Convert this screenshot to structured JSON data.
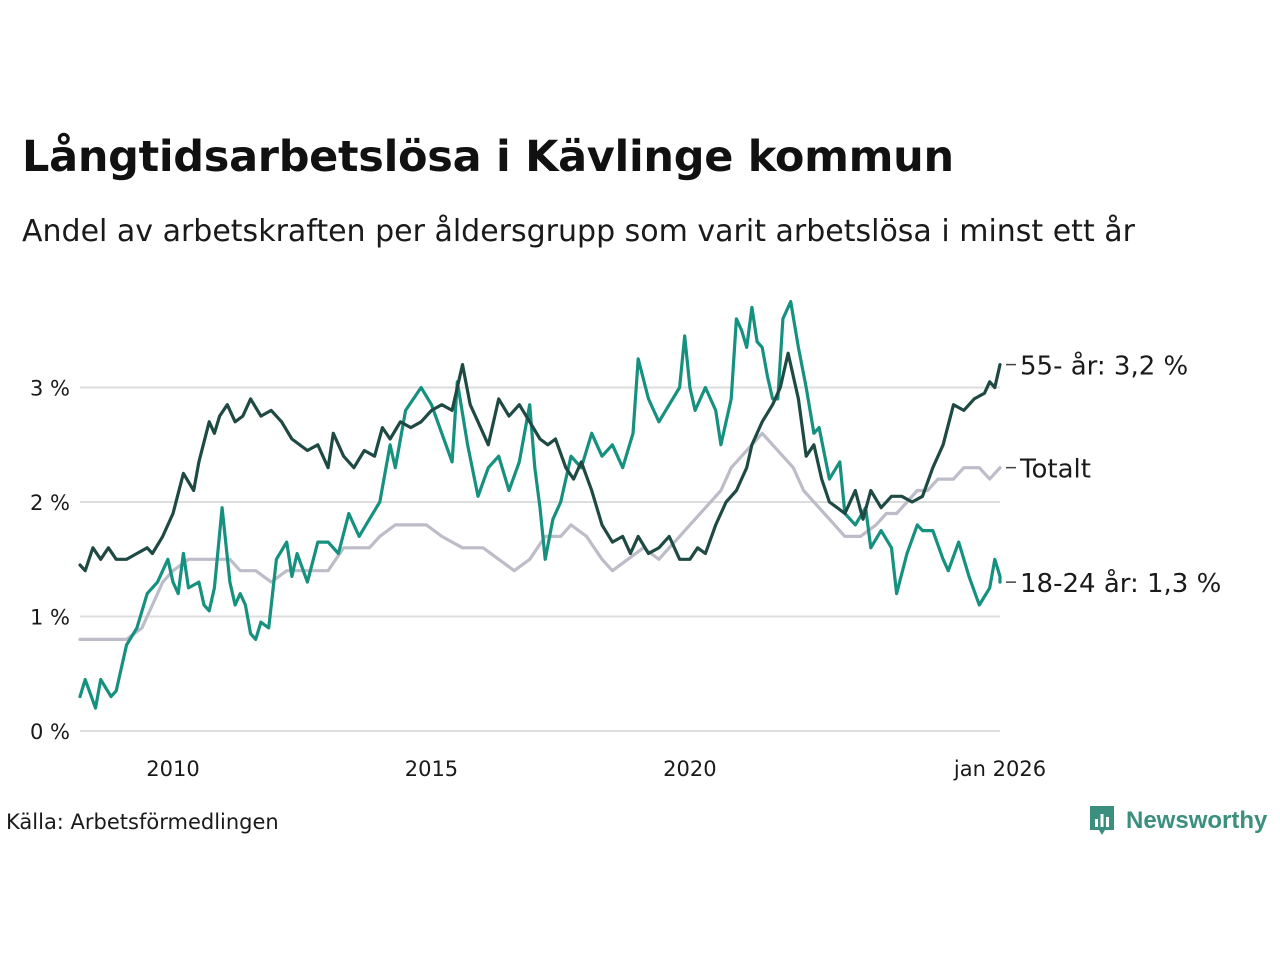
{
  "title": "Långtidsarbetslösa i Kävlinge kommun",
  "subtitle": "Andel av arbetskraften per åldersgrupp som varit arbetslösa i minst ett år",
  "source": "Källa: Arbetsförmedlingen",
  "brand": "Newsworthy",
  "colors": {
    "older": "#1f4a44",
    "young": "#16917f",
    "total": "#bdbcc9",
    "grid": "#dddddd",
    "brand": "#3b8f7e"
  },
  "chart_data": {
    "type": "line",
    "title": "Långtidsarbetslösa i Kävlinge kommun",
    "xlabel": "",
    "ylabel": "",
    "xlim": [
      2008.2,
      2026.0
    ],
    "ylim": [
      0,
      3.8
    ],
    "grid": true,
    "y_ticks": [
      {
        "value": 0,
        "label": "0 %"
      },
      {
        "value": 1,
        "label": "1 %"
      },
      {
        "value": 2,
        "label": "2 %"
      },
      {
        "value": 3,
        "label": "3 %"
      }
    ],
    "x_ticks": [
      {
        "value": 2010,
        "label": "2010"
      },
      {
        "value": 2015,
        "label": "2015"
      },
      {
        "value": 2020,
        "label": "2020"
      },
      {
        "value": 2026,
        "label": "jan 2026"
      }
    ],
    "series": [
      {
        "name": "Totalt",
        "color": "#bdbcc9",
        "end_label": "Totalt",
        "points": [
          [
            2008.2,
            0.8
          ],
          [
            2009.1,
            0.8
          ],
          [
            2009.4,
            0.9
          ],
          [
            2009.6,
            1.1
          ],
          [
            2009.8,
            1.3
          ],
          [
            2010.0,
            1.4
          ],
          [
            2010.3,
            1.5
          ],
          [
            2010.6,
            1.5
          ],
          [
            2011.1,
            1.5
          ],
          [
            2011.3,
            1.4
          ],
          [
            2011.6,
            1.4
          ],
          [
            2011.9,
            1.3
          ],
          [
            2012.2,
            1.4
          ],
          [
            2012.6,
            1.4
          ],
          [
            2013.0,
            1.4
          ],
          [
            2013.3,
            1.6
          ],
          [
            2013.8,
            1.6
          ],
          [
            2014.0,
            1.7
          ],
          [
            2014.3,
            1.8
          ],
          [
            2014.6,
            1.8
          ],
          [
            2014.9,
            1.8
          ],
          [
            2015.2,
            1.7
          ],
          [
            2015.6,
            1.6
          ],
          [
            2016.0,
            1.6
          ],
          [
            2016.3,
            1.5
          ],
          [
            2016.6,
            1.4
          ],
          [
            2016.9,
            1.5
          ],
          [
            2017.2,
            1.7
          ],
          [
            2017.5,
            1.7
          ],
          [
            2017.7,
            1.8
          ],
          [
            2018.0,
            1.7
          ],
          [
            2018.3,
            1.5
          ],
          [
            2018.5,
            1.4
          ],
          [
            2018.8,
            1.5
          ],
          [
            2019.1,
            1.6
          ],
          [
            2019.4,
            1.5
          ],
          [
            2019.6,
            1.6
          ],
          [
            2019.8,
            1.7
          ],
          [
            2020.0,
            1.8
          ],
          [
            2020.2,
            1.9
          ],
          [
            2020.4,
            2.0
          ],
          [
            2020.6,
            2.1
          ],
          [
            2020.8,
            2.3
          ],
          [
            2021.0,
            2.4
          ],
          [
            2021.2,
            2.5
          ],
          [
            2021.4,
            2.6
          ],
          [
            2021.6,
            2.5
          ],
          [
            2021.8,
            2.4
          ],
          [
            2022.0,
            2.3
          ],
          [
            2022.2,
            2.1
          ],
          [
            2022.4,
            2.0
          ],
          [
            2022.6,
            1.9
          ],
          [
            2022.8,
            1.8
          ],
          [
            2023.0,
            1.7
          ],
          [
            2023.3,
            1.7
          ],
          [
            2023.6,
            1.8
          ],
          [
            2023.8,
            1.9
          ],
          [
            2024.0,
            1.9
          ],
          [
            2024.2,
            2.0
          ],
          [
            2024.4,
            2.1
          ],
          [
            2024.6,
            2.1
          ],
          [
            2024.8,
            2.2
          ],
          [
            2025.1,
            2.2
          ],
          [
            2025.3,
            2.3
          ],
          [
            2025.6,
            2.3
          ],
          [
            2025.8,
            2.2
          ],
          [
            2026.0,
            2.3
          ]
        ]
      },
      {
        "name": "18-24 år",
        "color": "#16917f",
        "end_label": "18-24 år: 1,3 %",
        "points": [
          [
            2008.2,
            0.3
          ],
          [
            2008.3,
            0.45
          ],
          [
            2008.5,
            0.2
          ],
          [
            2008.6,
            0.45
          ],
          [
            2008.8,
            0.3
          ],
          [
            2008.9,
            0.35
          ],
          [
            2009.1,
            0.75
          ],
          [
            2009.3,
            0.9
          ],
          [
            2009.5,
            1.2
          ],
          [
            2009.7,
            1.3
          ],
          [
            2009.9,
            1.5
          ],
          [
            2010.0,
            1.3
          ],
          [
            2010.1,
            1.2
          ],
          [
            2010.2,
            1.55
          ],
          [
            2010.3,
            1.25
          ],
          [
            2010.5,
            1.3
          ],
          [
            2010.6,
            1.1
          ],
          [
            2010.7,
            1.05
          ],
          [
            2010.8,
            1.25
          ],
          [
            2010.95,
            1.95
          ],
          [
            2011.1,
            1.3
          ],
          [
            2011.2,
            1.1
          ],
          [
            2011.3,
            1.2
          ],
          [
            2011.4,
            1.1
          ],
          [
            2011.5,
            0.85
          ],
          [
            2011.6,
            0.8
          ],
          [
            2011.7,
            0.95
          ],
          [
            2011.85,
            0.9
          ],
          [
            2012.0,
            1.5
          ],
          [
            2012.2,
            1.65
          ],
          [
            2012.3,
            1.35
          ],
          [
            2012.4,
            1.55
          ],
          [
            2012.6,
            1.3
          ],
          [
            2012.8,
            1.65
          ],
          [
            2013.0,
            1.65
          ],
          [
            2013.2,
            1.55
          ],
          [
            2013.4,
            1.9
          ],
          [
            2013.6,
            1.7
          ],
          [
            2013.8,
            1.85
          ],
          [
            2014.0,
            2.0
          ],
          [
            2014.2,
            2.5
          ],
          [
            2014.3,
            2.3
          ],
          [
            2014.5,
            2.8
          ],
          [
            2014.8,
            3.0
          ],
          [
            2015.0,
            2.85
          ],
          [
            2015.2,
            2.6
          ],
          [
            2015.4,
            2.35
          ],
          [
            2015.5,
            3.05
          ],
          [
            2015.7,
            2.5
          ],
          [
            2015.9,
            2.05
          ],
          [
            2016.1,
            2.3
          ],
          [
            2016.3,
            2.4
          ],
          [
            2016.5,
            2.1
          ],
          [
            2016.7,
            2.35
          ],
          [
            2016.9,
            2.85
          ],
          [
            2017.0,
            2.3
          ],
          [
            2017.1,
            1.95
          ],
          [
            2017.2,
            1.5
          ],
          [
            2017.35,
            1.85
          ],
          [
            2017.5,
            2.0
          ],
          [
            2017.7,
            2.4
          ],
          [
            2017.9,
            2.3
          ],
          [
            2018.1,
            2.6
          ],
          [
            2018.3,
            2.4
          ],
          [
            2018.5,
            2.5
          ],
          [
            2018.7,
            2.3
          ],
          [
            2018.9,
            2.6
          ],
          [
            2019.0,
            3.25
          ],
          [
            2019.2,
            2.9
          ],
          [
            2019.4,
            2.7
          ],
          [
            2019.6,
            2.85
          ],
          [
            2019.8,
            3.0
          ],
          [
            2019.9,
            3.45
          ],
          [
            2020.0,
            3.0
          ],
          [
            2020.1,
            2.8
          ],
          [
            2020.3,
            3.0
          ],
          [
            2020.5,
            2.8
          ],
          [
            2020.6,
            2.5
          ],
          [
            2020.8,
            2.9
          ],
          [
            2020.9,
            3.6
          ],
          [
            2021.0,
            3.5
          ],
          [
            2021.1,
            3.35
          ],
          [
            2021.2,
            3.7
          ],
          [
            2021.3,
            3.4
          ],
          [
            2021.4,
            3.35
          ],
          [
            2021.5,
            3.1
          ],
          [
            2021.6,
            2.9
          ],
          [
            2021.7,
            2.9
          ],
          [
            2021.8,
            3.6
          ],
          [
            2021.95,
            3.75
          ],
          [
            2022.1,
            3.35
          ],
          [
            2022.25,
            3.0
          ],
          [
            2022.4,
            2.6
          ],
          [
            2022.5,
            2.65
          ],
          [
            2022.7,
            2.2
          ],
          [
            2022.9,
            2.35
          ],
          [
            2023.0,
            1.9
          ],
          [
            2023.2,
            1.8
          ],
          [
            2023.4,
            1.95
          ],
          [
            2023.5,
            1.6
          ],
          [
            2023.7,
            1.75
          ],
          [
            2023.9,
            1.6
          ],
          [
            2024.0,
            1.2
          ],
          [
            2024.2,
            1.55
          ],
          [
            2024.4,
            1.8
          ],
          [
            2024.5,
            1.75
          ],
          [
            2024.7,
            1.75
          ],
          [
            2024.9,
            1.5
          ],
          [
            2025.0,
            1.4
          ],
          [
            2025.2,
            1.65
          ],
          [
            2025.4,
            1.35
          ],
          [
            2025.6,
            1.1
          ],
          [
            2025.8,
            1.25
          ],
          [
            2025.9,
            1.5
          ],
          [
            2026.0,
            1.35
          ],
          [
            2026.0,
            1.3
          ]
        ]
      },
      {
        "name": "55- år",
        "color": "#1f4a44",
        "end_label": "55- år: 3,2 %",
        "points": [
          [
            2008.2,
            1.45
          ],
          [
            2008.3,
            1.4
          ],
          [
            2008.45,
            1.6
          ],
          [
            2008.6,
            1.5
          ],
          [
            2008.75,
            1.6
          ],
          [
            2008.9,
            1.5
          ],
          [
            2009.1,
            1.5
          ],
          [
            2009.3,
            1.55
          ],
          [
            2009.5,
            1.6
          ],
          [
            2009.6,
            1.55
          ],
          [
            2009.8,
            1.7
          ],
          [
            2010.0,
            1.9
          ],
          [
            2010.2,
            2.25
          ],
          [
            2010.4,
            2.1
          ],
          [
            2010.5,
            2.35
          ],
          [
            2010.7,
            2.7
          ],
          [
            2010.8,
            2.6
          ],
          [
            2010.9,
            2.75
          ],
          [
            2011.05,
            2.85
          ],
          [
            2011.2,
            2.7
          ],
          [
            2011.35,
            2.75
          ],
          [
            2011.5,
            2.9
          ],
          [
            2011.7,
            2.75
          ],
          [
            2011.9,
            2.8
          ],
          [
            2012.1,
            2.7
          ],
          [
            2012.3,
            2.55
          ],
          [
            2012.6,
            2.45
          ],
          [
            2012.8,
            2.5
          ],
          [
            2013.0,
            2.3
          ],
          [
            2013.1,
            2.6
          ],
          [
            2013.3,
            2.4
          ],
          [
            2013.5,
            2.3
          ],
          [
            2013.7,
            2.45
          ],
          [
            2013.9,
            2.4
          ],
          [
            2014.05,
            2.65
          ],
          [
            2014.2,
            2.55
          ],
          [
            2014.4,
            2.7
          ],
          [
            2014.6,
            2.65
          ],
          [
            2014.8,
            2.7
          ],
          [
            2015.0,
            2.8
          ],
          [
            2015.2,
            2.85
          ],
          [
            2015.4,
            2.8
          ],
          [
            2015.6,
            3.2
          ],
          [
            2015.75,
            2.85
          ],
          [
            2015.9,
            2.7
          ],
          [
            2016.1,
            2.5
          ],
          [
            2016.3,
            2.9
          ],
          [
            2016.5,
            2.75
          ],
          [
            2016.7,
            2.85
          ],
          [
            2016.9,
            2.7
          ],
          [
            2017.1,
            2.55
          ],
          [
            2017.25,
            2.5
          ],
          [
            2017.4,
            2.55
          ],
          [
            2017.6,
            2.3
          ],
          [
            2017.75,
            2.2
          ],
          [
            2017.9,
            2.35
          ],
          [
            2018.1,
            2.1
          ],
          [
            2018.3,
            1.8
          ],
          [
            2018.5,
            1.65
          ],
          [
            2018.7,
            1.7
          ],
          [
            2018.85,
            1.55
          ],
          [
            2019.0,
            1.7
          ],
          [
            2019.2,
            1.55
          ],
          [
            2019.4,
            1.6
          ],
          [
            2019.6,
            1.7
          ],
          [
            2019.8,
            1.5
          ],
          [
            2020.0,
            1.5
          ],
          [
            2020.15,
            1.6
          ],
          [
            2020.3,
            1.55
          ],
          [
            2020.5,
            1.8
          ],
          [
            2020.7,
            2.0
          ],
          [
            2020.9,
            2.1
          ],
          [
            2021.1,
            2.3
          ],
          [
            2021.2,
            2.5
          ],
          [
            2021.4,
            2.7
          ],
          [
            2021.6,
            2.85
          ],
          [
            2021.75,
            3.0
          ],
          [
            2021.9,
            3.3
          ],
          [
            2022.1,
            2.9
          ],
          [
            2022.25,
            2.4
          ],
          [
            2022.4,
            2.5
          ],
          [
            2022.55,
            2.2
          ],
          [
            2022.7,
            2.0
          ],
          [
            2022.85,
            1.95
          ],
          [
            2023.0,
            1.9
          ],
          [
            2023.2,
            2.1
          ],
          [
            2023.35,
            1.85
          ],
          [
            2023.5,
            2.1
          ],
          [
            2023.7,
            1.95
          ],
          [
            2023.9,
            2.05
          ],
          [
            2024.1,
            2.05
          ],
          [
            2024.3,
            2.0
          ],
          [
            2024.5,
            2.05
          ],
          [
            2024.7,
            2.3
          ],
          [
            2024.9,
            2.5
          ],
          [
            2025.1,
            2.85
          ],
          [
            2025.3,
            2.8
          ],
          [
            2025.5,
            2.9
          ],
          [
            2025.7,
            2.95
          ],
          [
            2025.8,
            3.05
          ],
          [
            2025.9,
            3.0
          ],
          [
            2026.0,
            3.2
          ]
        ]
      }
    ]
  }
}
